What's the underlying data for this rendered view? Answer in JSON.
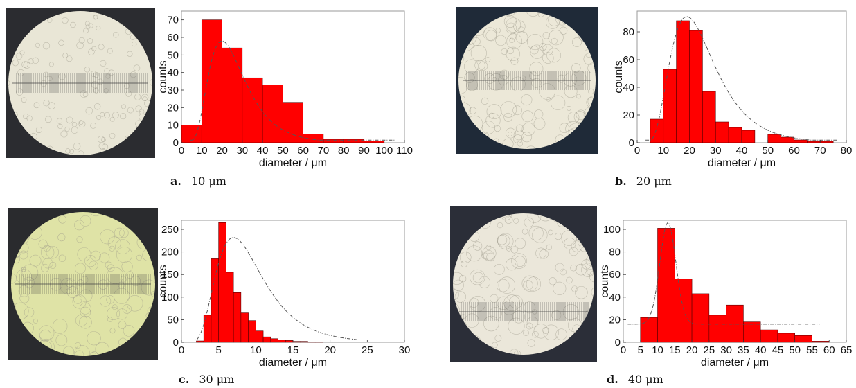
{
  "colors": {
    "bar": "#ff0000",
    "bar_edge": "#5a0000",
    "fit": "#555555",
    "frame": "#9a9a9a"
  },
  "panels": [
    {
      "letter": "a.",
      "size_label": "10 μm",
      "micro_tint": "#e9e6d6"
    },
    {
      "letter": "b.",
      "size_label": "20 μm",
      "micro_tint": "#ece8d8"
    },
    {
      "letter": "c.",
      "size_label": "30 μm",
      "micro_tint": "#dfe3a6"
    },
    {
      "letter": "d.",
      "size_label": "40 μm",
      "micro_tint": "#ebe7da"
    }
  ],
  "chart_data": [
    {
      "type": "bar",
      "xlabel": "diameter / μm",
      "ylabel": "counts",
      "xlim": [
        0,
        110
      ],
      "ylim": [
        0,
        75
      ],
      "xticks": [
        "0",
        "10",
        "20",
        "30",
        "40",
        "50",
        "60",
        "70",
        "80",
        "90",
        "100",
        "110"
      ],
      "yticks": [
        "0",
        "10",
        "20",
        "30",
        "40",
        "50",
        "60",
        "70"
      ],
      "bins": [
        [
          0,
          10
        ],
        [
          10,
          20
        ],
        [
          20,
          30
        ],
        [
          30,
          40
        ],
        [
          40,
          50
        ],
        [
          50,
          60
        ],
        [
          60,
          70
        ],
        [
          70,
          80
        ],
        [
          80,
          90
        ],
        [
          90,
          100
        ]
      ],
      "values": [
        10,
        70,
        54,
        37,
        33,
        23,
        5,
        2,
        2,
        1
      ],
      "fit": {
        "type": "lognormal fit curve",
        "peak_x": 20,
        "peak_y": 58
      },
      "grid": false
    },
    {
      "type": "bar",
      "xlabel": "diameter / μm",
      "ylabel": "counts",
      "xlim": [
        0,
        80
      ],
      "ylim": [
        0,
        95
      ],
      "xticks": [
        "0",
        "10",
        "20",
        "30",
        "40",
        "50",
        "60",
        "70",
        "80"
      ],
      "yticks": [
        "0",
        "20",
        "40",
        "60",
        "80"
      ],
      "bins": [
        [
          5,
          10
        ],
        [
          10,
          15
        ],
        [
          15,
          20
        ],
        [
          20,
          25
        ],
        [
          25,
          30
        ],
        [
          30,
          35
        ],
        [
          35,
          40
        ],
        [
          40,
          45
        ],
        [
          50,
          55
        ],
        [
          55,
          60
        ],
        [
          60,
          65
        ],
        [
          65,
          70
        ],
        [
          70,
          75
        ]
      ],
      "values": [
        17,
        53,
        88,
        81,
        37,
        15,
        11,
        9,
        6,
        4,
        2,
        1,
        1
      ],
      "fit": {
        "type": "lognormal fit curve",
        "peak_x": 19,
        "peak_y": 91
      },
      "grid": false
    },
    {
      "type": "bar",
      "xlabel": "diameter / μm",
      "ylabel": "counts",
      "xlim": [
        0,
        30
      ],
      "ylim": [
        0,
        270
      ],
      "xticks": [
        "0",
        "5",
        "10",
        "15",
        "20",
        "25",
        "30"
      ],
      "yticks": [
        "0",
        "50",
        "100",
        "150",
        "200",
        "250"
      ],
      "bins": [
        [
          2,
          3
        ],
        [
          3,
          4
        ],
        [
          4,
          5
        ],
        [
          5,
          6
        ],
        [
          6,
          7
        ],
        [
          7,
          8
        ],
        [
          8,
          9
        ],
        [
          9,
          10
        ],
        [
          10,
          11
        ],
        [
          11,
          12
        ],
        [
          12,
          13
        ],
        [
          13,
          14
        ],
        [
          14,
          15
        ],
        [
          15,
          16
        ],
        [
          16,
          17
        ],
        [
          17,
          18
        ],
        [
          18,
          19
        ]
      ],
      "values": [
        3,
        60,
        185,
        265,
        155,
        110,
        65,
        48,
        25,
        12,
        8,
        5,
        4,
        2,
        2,
        1,
        1
      ],
      "fit": {
        "type": "lognormal fit curve",
        "peak_x": 7,
        "peak_y": 232
      },
      "grid": false
    },
    {
      "type": "bar",
      "xlabel": "diameter / μm",
      "ylabel": "counts",
      "xlim": [
        0,
        65
      ],
      "ylim": [
        0,
        108
      ],
      "xticks": [
        "0",
        "5",
        "10",
        "15",
        "20",
        "25",
        "30",
        "35",
        "40",
        "45",
        "50",
        "55",
        "60",
        "65"
      ],
      "yticks": [
        "0",
        "20",
        "40",
        "60",
        "80",
        "100"
      ],
      "bins": [
        [
          5,
          10
        ],
        [
          10,
          15
        ],
        [
          15,
          20
        ],
        [
          20,
          25
        ],
        [
          25,
          30
        ],
        [
          30,
          35
        ],
        [
          35,
          40
        ],
        [
          40,
          45
        ],
        [
          45,
          50
        ],
        [
          50,
          55
        ],
        [
          55,
          60
        ]
      ],
      "values": [
        22,
        101,
        56,
        43,
        24,
        33,
        18,
        11,
        8,
        6,
        1
      ],
      "fit": {
        "type": "gaussian fit curve",
        "peak_x": 13,
        "peak_y": 106,
        "baseline": 16
      },
      "grid": false
    }
  ]
}
